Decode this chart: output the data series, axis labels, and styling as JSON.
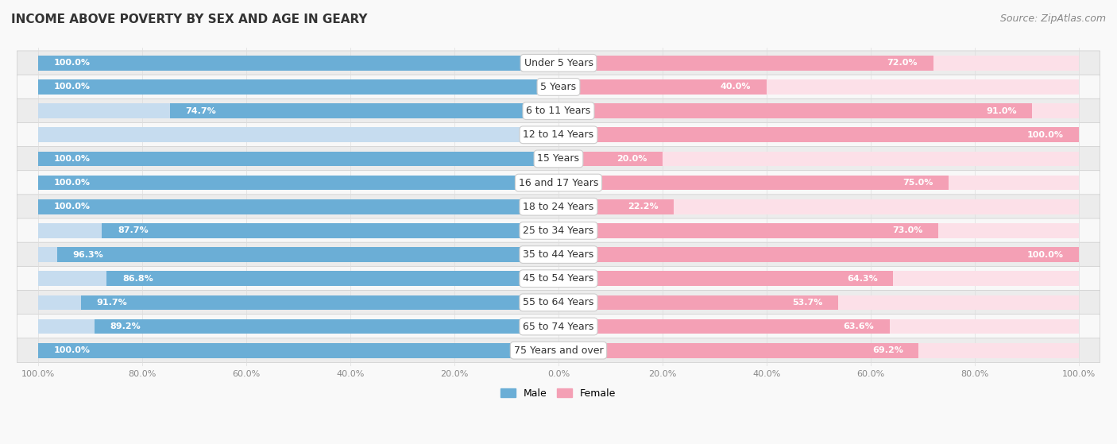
{
  "title": "INCOME ABOVE POVERTY BY SEX AND AGE IN GEARY",
  "source": "Source: ZipAtlas.com",
  "categories": [
    "Under 5 Years",
    "5 Years",
    "6 to 11 Years",
    "12 to 14 Years",
    "15 Years",
    "16 and 17 Years",
    "18 to 24 Years",
    "25 to 34 Years",
    "35 to 44 Years",
    "45 to 54 Years",
    "55 to 64 Years",
    "65 to 74 Years",
    "75 Years and over"
  ],
  "male": [
    100.0,
    100.0,
    74.7,
    0.0,
    100.0,
    100.0,
    100.0,
    87.7,
    96.3,
    86.8,
    91.7,
    89.2,
    100.0
  ],
  "female": [
    72.0,
    40.0,
    91.0,
    100.0,
    20.0,
    75.0,
    22.2,
    73.0,
    100.0,
    64.3,
    53.7,
    63.6,
    69.2
  ],
  "male_color": "#6baed6",
  "female_color": "#f4a0b5",
  "male_light_color": "#c6dcef",
  "female_light_color": "#fce0e8",
  "row_bg_color": "#ececec",
  "row_alt_bg_color": "#f8f8f8",
  "background_color": "#f9f9f9",
  "title_fontsize": 11,
  "source_fontsize": 9,
  "label_fontsize": 8,
  "category_fontsize": 9,
  "tick_fontsize": 8,
  "bar_height": 0.62,
  "max_value": 100.0,
  "xlim_left": -105,
  "xlim_right": 105
}
